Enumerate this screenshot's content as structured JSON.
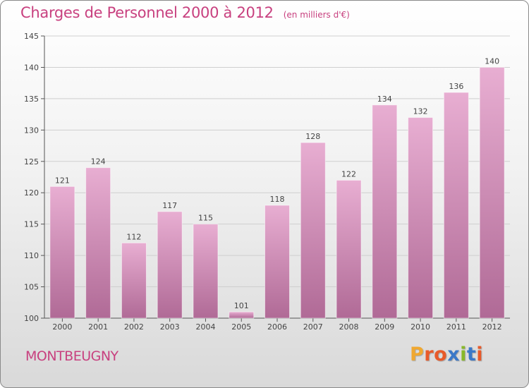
{
  "header": {
    "title": "Charges de Personnel 2000 à 2012",
    "subtitle": "(en milliers d'€)"
  },
  "footer": {
    "commune": "MONTBEUGNY",
    "logo_letters": [
      "P",
      "r",
      "o",
      "x",
      "i",
      "t",
      "i"
    ],
    "logo_colors": [
      "#f0a830",
      "#e85a2a",
      "#e85a2a",
      "#3a78c8",
      "#88b82a",
      "#3a78c8",
      "#e85a2a"
    ]
  },
  "colors": {
    "bar_top": "#e8aed2",
    "bar_bottom": "#b06a96",
    "title": "#c8407f",
    "grid": "#cfcfcf"
  },
  "chart_data": {
    "type": "bar",
    "title": "Charges de Personnel 2000 à 2012",
    "subtitle": "(en milliers d'€)",
    "categories": [
      "2000",
      "2001",
      "2002",
      "2003",
      "2004",
      "2005",
      "2006",
      "2007",
      "2008",
      "2009",
      "2010",
      "2011",
      "2012"
    ],
    "values": [
      121,
      124,
      112,
      117,
      115,
      101,
      118,
      128,
      122,
      134,
      132,
      136,
      140
    ],
    "ylim": [
      100,
      145
    ],
    "yticks": [
      100,
      105,
      110,
      115,
      120,
      125,
      130,
      135,
      140,
      145
    ],
    "grid": true,
    "xlabel": "",
    "ylabel": ""
  }
}
